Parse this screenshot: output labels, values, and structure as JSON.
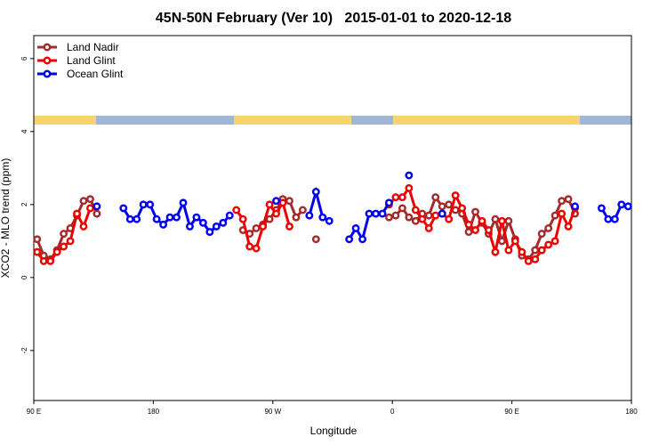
{
  "chart_data": {
    "type": "line",
    "title": "45N-50N February (Ver 10)   2015-01-01 to 2020-12-18",
    "x_label": "Longitude",
    "y_label": "XCO2 - MLO trend (ppm)",
    "xlim": [
      90,
      540
    ],
    "xticks": [
      {
        "value": 90,
        "label": "90 E"
      },
      {
        "value": 180,
        "label": "180"
      },
      {
        "value": 270,
        "label": "90 W"
      },
      {
        "value": 360,
        "label": "0"
      },
      {
        "value": 450,
        "label": "90 E"
      },
      {
        "value": 540,
        "label": "180"
      }
    ],
    "ylim": [
      -3.37,
      6.63
    ],
    "yticks": [
      -2,
      0,
      2,
      4,
      6
    ],
    "legend": "top-left",
    "series": [
      {
        "name": "Land Nadir",
        "color": "#a52a2a",
        "x": [
          92.5,
          97.5,
          102.5,
          107.5,
          112.5,
          117.5,
          122.5,
          127.5,
          132.5,
          137.5,
          142.5,
          247.5,
          252.5,
          257.5,
          262.5,
          267.5,
          272.5,
          277.5,
          282.5,
          287.5,
          292.5,
          297.5,
          302.5,
          307.5,
          357.5,
          362.5,
          367.5,
          372.5,
          377.5,
          382.5,
          387.5,
          392.5,
          397.5,
          402.5,
          407.5,
          412.5,
          417.5,
          422.5,
          427.5,
          432.5,
          437.5,
          442.5,
          447.5,
          452.5,
          457.5,
          462.5,
          467.5,
          472.5,
          477.5,
          482.5,
          487.5,
          492.5,
          497.5
        ],
        "values": [
          1.05,
          0.6,
          0.5,
          0.75,
          1.2,
          1.35,
          1.7,
          2.1,
          2.15,
          1.75,
          null,
          1.3,
          1.2,
          1.35,
          1.45,
          1.6,
          1.85,
          2.15,
          2.1,
          1.65,
          1.85,
          null,
          1.05,
          null,
          1.65,
          1.7,
          1.9,
          1.65,
          1.55,
          1.75,
          1.7,
          2.2,
          1.95,
          2.0,
          1.85,
          1.75,
          1.25,
          1.8,
          1.5,
          1.2,
          1.6,
          1.0,
          1.55,
          1.05,
          0.6,
          0.5,
          0.75,
          1.2,
          1.35,
          1.7,
          2.1,
          2.15,
          1.75
        ]
      },
      {
        "name": "Land Glint",
        "color": "#ee0000",
        "x": [
          92.5,
          97.5,
          102.5,
          107.5,
          112.5,
          117.5,
          122.5,
          127.5,
          132.5,
          137.5,
          242.5,
          247.5,
          252.5,
          257.5,
          262.5,
          267.5,
          272.5,
          277.5,
          282.5,
          287.5,
          357.5,
          362.5,
          367.5,
          372.5,
          377.5,
          382.5,
          387.5,
          392.5,
          397.5,
          402.5,
          407.5,
          412.5,
          417.5,
          422.5,
          427.5,
          432.5,
          437.5,
          442.5,
          447.5,
          452.5,
          457.5,
          462.5,
          467.5,
          472.5,
          477.5,
          482.5,
          487.5,
          492.5,
          497.5
        ],
        "values": [
          0.7,
          0.45,
          0.45,
          0.7,
          0.85,
          1.0,
          1.75,
          1.4,
          1.9,
          null,
          1.85,
          1.6,
          0.85,
          0.8,
          1.4,
          2.0,
          1.75,
          2.05,
          1.4,
          null,
          2.0,
          2.2,
          2.2,
          2.45,
          1.85,
          1.6,
          1.35,
          1.7,
          1.75,
          1.6,
          2.25,
          1.9,
          1.45,
          1.3,
          1.55,
          1.3,
          0.7,
          1.55,
          0.75,
          1.0,
          0.7,
          0.45,
          0.5,
          0.75,
          0.9,
          1.0,
          1.75,
          1.4,
          1.9
        ]
      },
      {
        "name": "Ocean Glint",
        "color": "#0000ee",
        "x": [
          137.5,
          142.5,
          157.5,
          162.5,
          167.5,
          172.5,
          177.5,
          182.5,
          187.5,
          192.5,
          197.5,
          202.5,
          207.5,
          212.5,
          217.5,
          222.5,
          227.5,
          232.5,
          237.5,
          242.5,
          272.5,
          277.5,
          297.5,
          302.5,
          307.5,
          312.5,
          317.5,
          327.5,
          332.5,
          337.5,
          342.5,
          347.5,
          352.5,
          357.5,
          362.5,
          372.5,
          377.5,
          397.5,
          402.5,
          497.5,
          502.5,
          517.5,
          522.5,
          527.5,
          532.5,
          537.5
        ],
        "values": [
          1.95,
          null,
          1.9,
          1.6,
          1.6,
          2.0,
          2.0,
          1.6,
          1.45,
          1.65,
          1.65,
          2.05,
          1.4,
          1.65,
          1.5,
          1.25,
          1.4,
          1.5,
          1.7,
          null,
          2.1,
          null,
          1.7,
          2.35,
          1.65,
          1.55,
          null,
          1.05,
          1.35,
          1.05,
          1.75,
          1.75,
          1.75,
          2.05,
          null,
          2.8,
          null,
          1.75,
          null,
          1.95,
          null,
          1.9,
          1.6,
          1.6,
          2.0,
          1.95
        ]
      }
    ]
  }
}
